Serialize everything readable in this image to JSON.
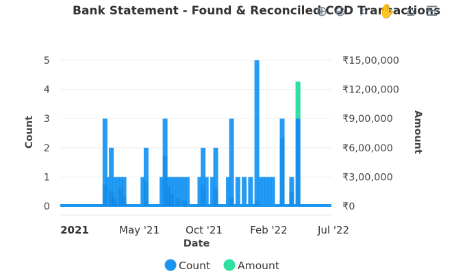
{
  "chart_data": {
    "type": "bar",
    "title": "Bank Statement - Found & Reconciled COD Transactions",
    "xlabel": "Date",
    "ylabel_left": "Count",
    "ylabel_right": "Amount",
    "x_ticks": [
      "2021",
      "May '21",
      "Oct '21",
      "Feb '22",
      "Jul '22"
    ],
    "x_range": [
      "2020-11-22",
      "2022-07-15"
    ],
    "y_left_range": [
      0,
      5
    ],
    "y_left_ticks": [
      "0",
      "1",
      "2",
      "3",
      "4",
      "5"
    ],
    "y_right_range": [
      0,
      1500000
    ],
    "y_right_ticks": [
      "₹0",
      "₹3,00,000",
      "₹6,00,000",
      "₹9,00,000",
      "₹12,00,000",
      "₹15,00,000"
    ],
    "grid": true,
    "legend_position": "bottom",
    "series": [
      {
        "name": "Count",
        "color": "#1a96f2",
        "values": [
          {
            "x": "2021-03-01",
            "y": 3
          },
          {
            "x": "2021-03-08",
            "y": 1
          },
          {
            "x": "2021-03-15",
            "y": 2
          },
          {
            "x": "2021-03-22",
            "y": 1
          },
          {
            "x": "2021-03-29",
            "y": 1
          },
          {
            "x": "2021-04-05",
            "y": 1
          },
          {
            "x": "2021-04-12",
            "y": 1
          },
          {
            "x": "2021-05-24",
            "y": 1
          },
          {
            "x": "2021-05-31",
            "y": 2
          },
          {
            "x": "2021-07-05",
            "y": 1
          },
          {
            "x": "2021-07-12",
            "y": 3
          },
          {
            "x": "2021-07-19",
            "y": 1
          },
          {
            "x": "2021-07-26",
            "y": 1
          },
          {
            "x": "2021-08-02",
            "y": 1
          },
          {
            "x": "2021-08-09",
            "y": 1
          },
          {
            "x": "2021-08-16",
            "y": 1
          },
          {
            "x": "2021-08-23",
            "y": 1
          },
          {
            "x": "2021-08-30",
            "y": 1
          },
          {
            "x": "2021-09-27",
            "y": 1
          },
          {
            "x": "2021-10-04",
            "y": 2
          },
          {
            "x": "2021-10-11",
            "y": 1
          },
          {
            "x": "2021-10-25",
            "y": 1
          },
          {
            "x": "2021-11-01",
            "y": 2
          },
          {
            "x": "2021-11-29",
            "y": 1
          },
          {
            "x": "2021-12-06",
            "y": 3
          },
          {
            "x": "2021-12-20",
            "y": 1
          },
          {
            "x": "2022-01-03",
            "y": 1
          },
          {
            "x": "2022-01-17",
            "y": 1
          },
          {
            "x": "2022-01-31",
            "y": 5
          },
          {
            "x": "2022-02-07",
            "y": 1
          },
          {
            "x": "2022-02-14",
            "y": 1
          },
          {
            "x": "2022-02-21",
            "y": 1
          },
          {
            "x": "2022-02-28",
            "y": 1
          },
          {
            "x": "2022-03-07",
            "y": 1
          },
          {
            "x": "2022-03-28",
            "y": 3
          },
          {
            "x": "2022-04-18",
            "y": 1
          },
          {
            "x": "2022-05-02",
            "y": 3
          }
        ]
      },
      {
        "name": "Amount",
        "color": "#2fe0a0",
        "values": [
          {
            "x": "2021-03-01",
            "y": 220000
          },
          {
            "x": "2021-03-15",
            "y": 150000
          },
          {
            "x": "2021-03-22",
            "y": 80000
          },
          {
            "x": "2021-04-05",
            "y": 180000
          },
          {
            "x": "2021-04-12",
            "y": 100000
          },
          {
            "x": "2021-05-31",
            "y": 250000
          },
          {
            "x": "2021-07-12",
            "y": 520000
          },
          {
            "x": "2021-07-19",
            "y": 200000
          },
          {
            "x": "2021-07-26",
            "y": 130000
          },
          {
            "x": "2021-08-09",
            "y": 80000
          },
          {
            "x": "2021-08-23",
            "y": 60000
          },
          {
            "x": "2021-10-04",
            "y": 220000
          },
          {
            "x": "2021-11-01",
            "y": 180000
          },
          {
            "x": "2021-12-06",
            "y": 90000
          },
          {
            "x": "2022-01-31",
            "y": 60000
          },
          {
            "x": "2022-03-28",
            "y": 700000
          },
          {
            "x": "2022-04-18",
            "y": 150000
          },
          {
            "x": "2022-05-02",
            "y": 1280000
          }
        ]
      }
    ]
  },
  "toolbar": {
    "items": [
      {
        "name": "zoom-in-icon",
        "glyph": "⊕"
      },
      {
        "name": "zoom-out-icon",
        "glyph": "⊖"
      },
      {
        "name": "selection-zoom-icon",
        "glyph": "⌕"
      },
      {
        "name": "pan-hand-icon",
        "glyph": "✋"
      },
      {
        "name": "home-reset-icon",
        "glyph": "⌂"
      },
      {
        "name": "menu-icon",
        "glyph": "☰"
      }
    ]
  }
}
